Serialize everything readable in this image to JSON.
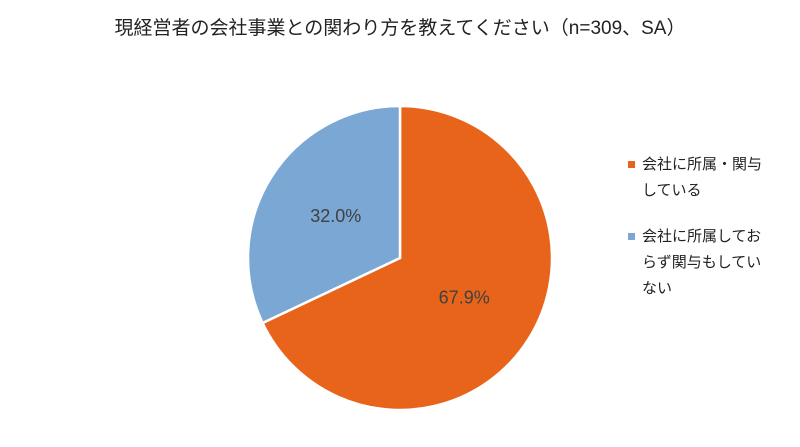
{
  "chart_data": {
    "type": "pie",
    "title": "現経営者の会社事業との関わり方を教えてください（n=309、SA）",
    "categories": [
      "会社に所属・関与している",
      "会社に所属しておらず関与もしていない"
    ],
    "values": [
      67.9,
      32.0
    ],
    "value_labels": [
      "67.9%",
      "32.0%"
    ],
    "colors": [
      "#e8641b",
      "#7ba7d5"
    ],
    "legend": "right"
  }
}
